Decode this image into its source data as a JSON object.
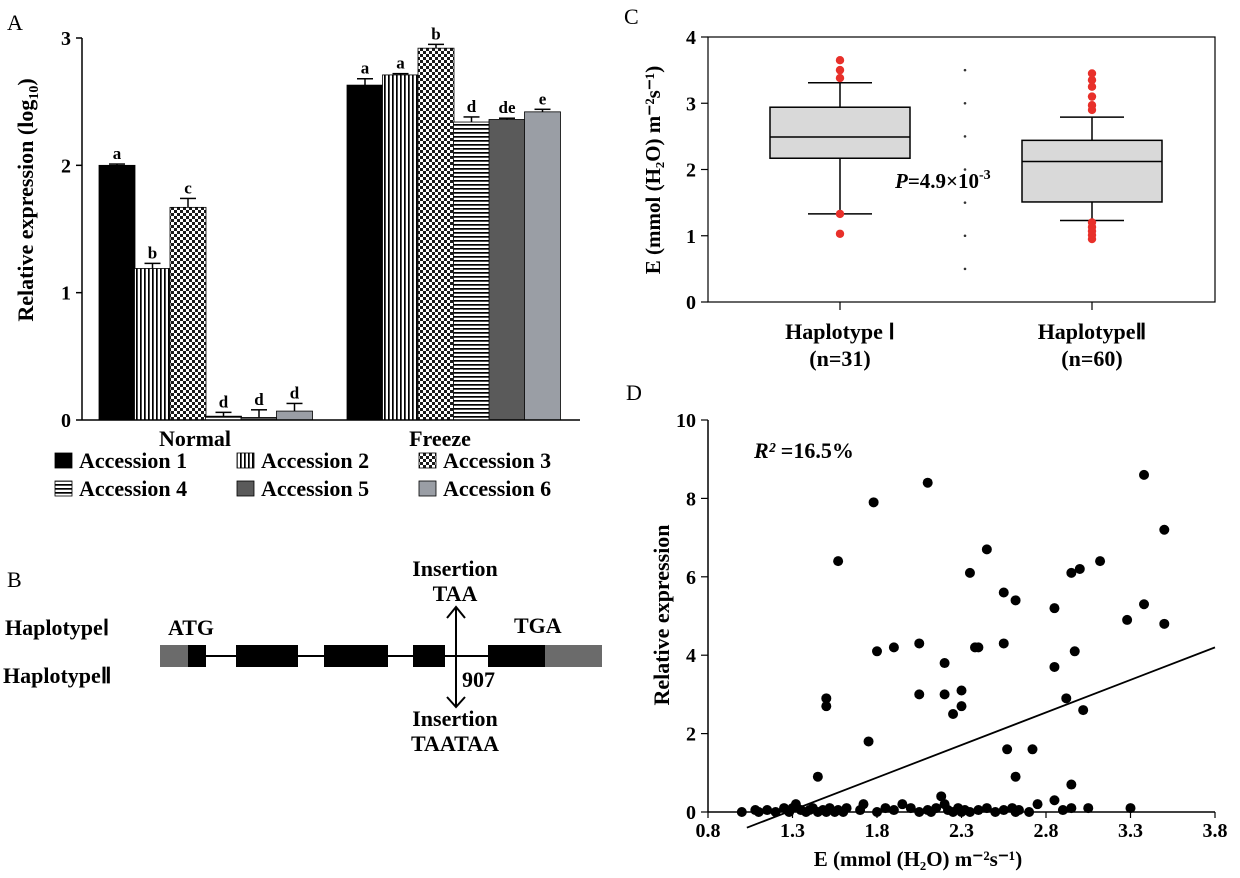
{
  "colors": {
    "accession1": "#000000",
    "accession2": "#ffffff",
    "accession3": "#ffffff",
    "accession4": "#ffffff",
    "accession5": "#5a5a5a",
    "accession6": "#9a9ea5",
    "box_fill": "#d9d9d9",
    "outlier": "#e8302a",
    "exon": "#000000",
    "utr": "#6b6b6b"
  },
  "panels": {
    "a": {
      "letter": "A"
    },
    "b": {
      "letter": "B"
    },
    "c": {
      "letter": "C"
    },
    "d": {
      "letter": "D"
    }
  },
  "chart_data": [
    {
      "id": "panel-a",
      "type": "bar",
      "ylabel": "Relative expression (log",
      "ylabel_sub": "10",
      "ylabel_close": ")",
      "ylim": [
        0,
        3
      ],
      "yticks": [
        "0",
        "1",
        "2",
        "3"
      ],
      "categories": [
        "Normal",
        "Freeze"
      ],
      "series": [
        {
          "name": "Accession 1",
          "pattern": "solid-black",
          "values": [
            2.0,
            2.63
          ],
          "errors": [
            0.01,
            0.05
          ],
          "letters": [
            "a",
            "a"
          ]
        },
        {
          "name": "Accession 2",
          "pattern": "vertical-lines",
          "values": [
            1.19,
            2.71
          ],
          "errors": [
            0.04,
            0.01
          ],
          "letters": [
            "b",
            "a"
          ]
        },
        {
          "name": "Accession 3",
          "pattern": "checker",
          "values": [
            1.67,
            2.92
          ],
          "errors": [
            0.07,
            0.03
          ],
          "letters": [
            "c",
            "b"
          ]
        },
        {
          "name": "Accession 4",
          "pattern": "horizontal-lines",
          "values": [
            0.03,
            2.34
          ],
          "errors": [
            0.03,
            0.04
          ],
          "letters": [
            "d",
            "d"
          ]
        },
        {
          "name": "Accession 5",
          "pattern": "solid-darkgray",
          "values": [
            0.02,
            2.36
          ],
          "errors": [
            0.06,
            0.01
          ],
          "letters": [
            "d",
            "de"
          ]
        },
        {
          "name": "Accession 6",
          "pattern": "solid-lightgray",
          "values": [
            0.07,
            2.42
          ],
          "errors": [
            0.06,
            0.02
          ],
          "letters": [
            "d",
            "e"
          ]
        }
      ]
    },
    {
      "id": "panel-c",
      "type": "box",
      "ylabel": "E (mmol (H₂O) m⁻²s⁻¹)",
      "ylim": [
        0,
        4
      ],
      "yticks": [
        "0",
        "1",
        "2",
        "3",
        "4"
      ],
      "groups": [
        {
          "label": "Haplotype Ⅰ",
          "n_label": "(n=31)",
          "whisker_low": 1.33,
          "q1": 2.17,
          "median": 2.49,
          "q3": 2.94,
          "whisker_high": 3.31,
          "outliers": [
            1.03,
            1.33,
            3.38,
            3.5,
            3.65
          ]
        },
        {
          "label": "HaplotypeⅡ",
          "n_label": "(n=60)",
          "whisker_low": 1.23,
          "q1": 1.51,
          "median": 2.12,
          "q3": 2.44,
          "whisker_high": 2.79,
          "outliers": [
            0.95,
            1.01,
            1.07,
            1.13,
            1.2,
            2.9,
            2.97,
            3.1,
            3.25,
            3.35,
            3.45
          ]
        }
      ],
      "annotation": {
        "p_symbol": "P",
        "p_rest": "=4.9×10",
        "p_exp": "-3"
      }
    },
    {
      "id": "panel-d",
      "type": "scatter",
      "xlabel": "E (mmol (H₂O) m⁻²s⁻¹)",
      "ylabel": "Relative  expression",
      "xlim": [
        0.8,
        3.8
      ],
      "ylim": [
        0,
        10
      ],
      "xticks": [
        "0.8",
        "1.3",
        "1.8",
        "2.3",
        "2.8",
        "3.3",
        "3.8"
      ],
      "yticks": [
        "0",
        "2",
        "4",
        "6",
        "8",
        "10"
      ],
      "r2_symbol": "R²",
      "r2_value": " =16.5%",
      "trendline": {
        "x": [
          1.03,
          3.8
        ],
        "y": [
          -0.4,
          4.2
        ]
      },
      "points": [
        [
          1.0,
          0
        ],
        [
          1.08,
          0.05
        ],
        [
          1.1,
          0
        ],
        [
          1.15,
          0.05
        ],
        [
          1.2,
          0
        ],
        [
          1.25,
          0.1
        ],
        [
          1.28,
          0
        ],
        [
          1.3,
          0.1
        ],
        [
          1.32,
          0.2
        ],
        [
          1.35,
          0.05
        ],
        [
          1.38,
          0
        ],
        [
          1.4,
          0.05
        ],
        [
          1.42,
          0.1
        ],
        [
          1.45,
          0
        ],
        [
          1.48,
          0.05
        ],
        [
          1.5,
          0
        ],
        [
          1.52,
          0.1
        ],
        [
          1.55,
          0
        ],
        [
          1.57,
          0.05
        ],
        [
          1.6,
          0
        ],
        [
          1.62,
          0.1
        ],
        [
          1.7,
          0.05
        ],
        [
          1.72,
          0.2
        ],
        [
          1.8,
          0
        ],
        [
          1.85,
          0.1
        ],
        [
          1.9,
          0.05
        ],
        [
          1.95,
          0.2
        ],
        [
          2.0,
          0.1
        ],
        [
          2.05,
          0
        ],
        [
          2.1,
          0.05
        ],
        [
          2.12,
          0
        ],
        [
          2.15,
          0.1
        ],
        [
          2.18,
          0.4
        ],
        [
          2.2,
          0.2
        ],
        [
          2.22,
          0.05
        ],
        [
          2.25,
          0
        ],
        [
          2.28,
          0.1
        ],
        [
          2.3,
          0
        ],
        [
          2.32,
          0.05
        ],
        [
          2.35,
          0
        ],
        [
          2.4,
          0.05
        ],
        [
          2.45,
          0.1
        ],
        [
          2.5,
          0
        ],
        [
          2.55,
          0.05
        ],
        [
          2.6,
          0.1
        ],
        [
          2.62,
          0
        ],
        [
          2.64,
          0.05
        ],
        [
          2.7,
          0
        ],
        [
          2.75,
          0.2
        ],
        [
          2.85,
          0.3
        ],
        [
          2.9,
          0.05
        ],
        [
          2.95,
          0.1
        ],
        [
          3.05,
          0.1
        ],
        [
          3.3,
          0.1
        ],
        [
          1.45,
          0.9
        ],
        [
          1.5,
          2.9
        ],
        [
          1.5,
          2.7
        ],
        [
          1.57,
          6.4
        ],
        [
          1.75,
          1.8
        ],
        [
          1.78,
          7.9
        ],
        [
          1.8,
          4.1
        ],
        [
          1.9,
          4.2
        ],
        [
          2.05,
          4.3
        ],
        [
          2.05,
          3.0
        ],
        [
          2.1,
          8.4
        ],
        [
          2.2,
          3.8
        ],
        [
          2.2,
          3.0
        ],
        [
          2.25,
          2.5
        ],
        [
          2.3,
          3.1
        ],
        [
          2.3,
          2.7
        ],
        [
          2.35,
          6.1
        ],
        [
          2.38,
          4.2
        ],
        [
          2.4,
          4.2
        ],
        [
          2.45,
          6.7
        ],
        [
          2.55,
          5.6
        ],
        [
          2.55,
          4.3
        ],
        [
          2.57,
          1.6
        ],
        [
          2.62,
          5.4
        ],
        [
          2.62,
          0.9
        ],
        [
          2.72,
          1.6
        ],
        [
          2.85,
          5.2
        ],
        [
          2.85,
          3.7
        ],
        [
          2.92,
          2.9
        ],
        [
          2.95,
          6.1
        ],
        [
          2.95,
          0.7
        ],
        [
          2.97,
          4.1
        ],
        [
          3.0,
          6.2
        ],
        [
          3.02,
          2.6
        ],
        [
          3.12,
          6.4
        ],
        [
          3.28,
          4.9
        ],
        [
          3.38,
          8.6
        ],
        [
          3.38,
          5.3
        ],
        [
          3.5,
          7.2
        ],
        [
          3.5,
          4.8
        ]
      ]
    }
  ],
  "gene_structure": {
    "hap1_label": "HaplotypeⅠ",
    "hap2_label": "HaplotypeⅡ",
    "atg_label": "ATG",
    "tga_label": "TGA",
    "insertion_top_line1": "Insertion",
    "insertion_top_line2": "TAA",
    "insertion_bottom_line1": "Insertion",
    "insertion_bottom_line2": "TAATAA",
    "position_label": "907"
  }
}
